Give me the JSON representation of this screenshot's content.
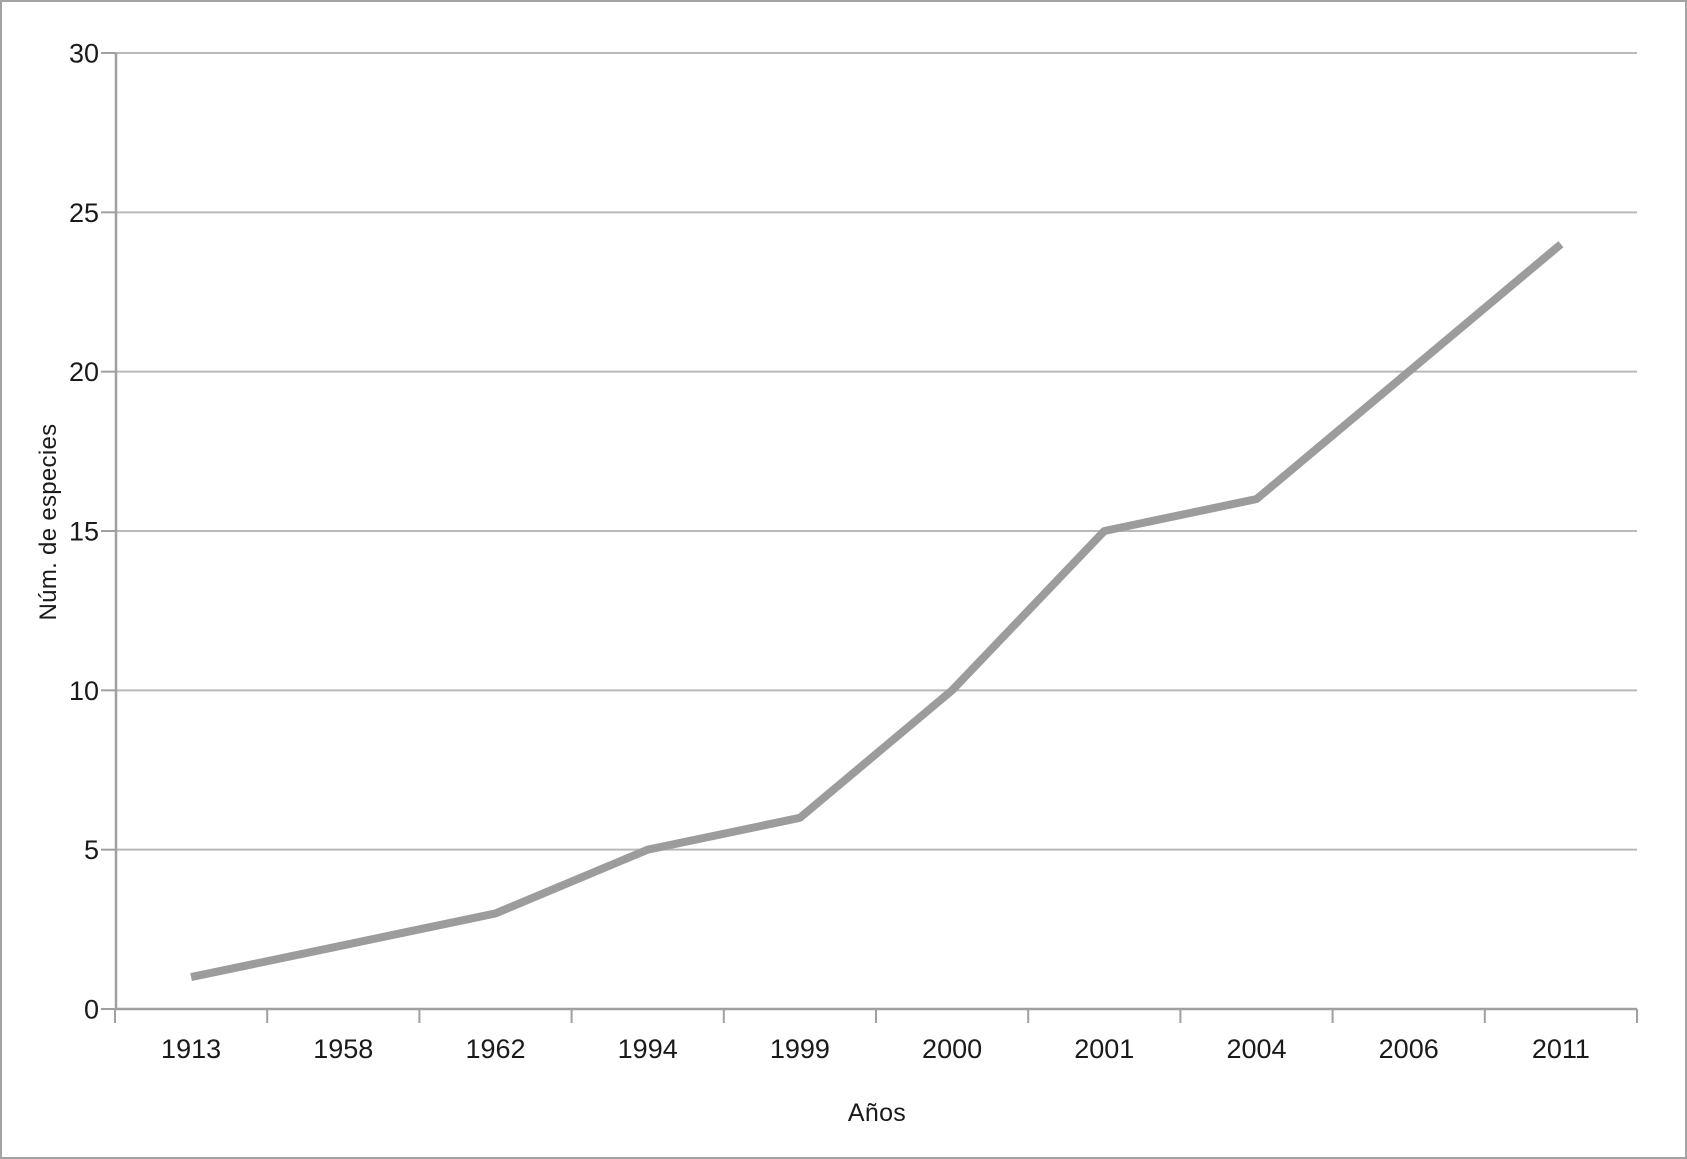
{
  "chart_data": {
    "type": "line",
    "categories": [
      "1913",
      "1958",
      "1962",
      "1994",
      "1999",
      "2000",
      "2001",
      "2004",
      "2006",
      "2011"
    ],
    "values": [
      1,
      2,
      3,
      5,
      6,
      10,
      15,
      16,
      20,
      24
    ],
    "title": "",
    "xlabel": "Años",
    "ylabel": "Núm. de especies",
    "ylim": [
      0,
      30
    ],
    "ytick_step": 5,
    "yticks": [
      0,
      5,
      10,
      15,
      20,
      25,
      30
    ],
    "grid": true,
    "legend": false,
    "colors": {
      "series_line": "#9c9c9c",
      "gridline": "#b9b9b9",
      "axis": "#a0a0a0",
      "tick": "#a0a0a0",
      "text": "#1a1a1a",
      "border": "#a3a3a3",
      "background": "#ffffff"
    }
  }
}
